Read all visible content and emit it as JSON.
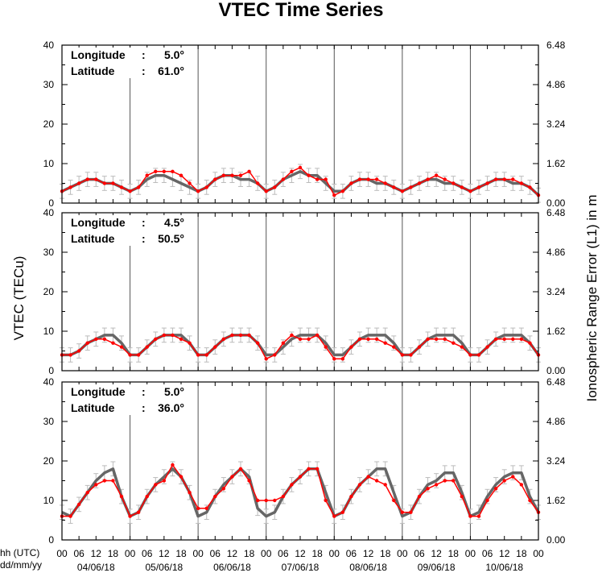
{
  "chart_data": {
    "type": "line",
    "title": "VTEC Time Series",
    "ylabel_left": "VTEC (TECu)",
    "ylabel_right": "Ionospheric Range Error (L1) in m",
    "xlabel_lines": [
      "hh (UTC)",
      "dd/mm/yy"
    ],
    "ylim": [
      0,
      40
    ],
    "y_ticks": [
      "0",
      "10",
      "20",
      "30",
      "40"
    ],
    "right_ticks": [
      "0.00",
      "1.62",
      "3.24",
      "4.86",
      "6.48"
    ],
    "hour_ticks": [
      "00",
      "06",
      "12",
      "18",
      "00",
      "06",
      "12",
      "18",
      "00",
      "06",
      "12",
      "18",
      "00",
      "06",
      "12",
      "18",
      "00",
      "06",
      "12",
      "18",
      "00",
      "06",
      "12",
      "18",
      "00",
      "06",
      "12",
      "18",
      "00"
    ],
    "day_labels": [
      "04/06/18",
      "05/06/18",
      "06/06/18",
      "07/06/18",
      "08/06/18",
      "09/06/18",
      "10/06/18"
    ],
    "series_colors": {
      "reference": "#666666",
      "measured": "#ff0000",
      "error_bar": "#bbbbbb",
      "day_line": "#555555"
    },
    "x_hours": [
      0,
      3,
      6,
      9,
      12,
      15,
      18,
      21,
      24,
      27,
      30,
      33,
      36,
      39,
      42,
      45,
      48,
      51,
      54,
      57,
      60,
      63,
      66,
      69,
      72,
      75,
      78,
      81,
      84,
      87,
      90,
      93,
      96,
      99,
      102,
      105,
      108,
      111,
      114,
      117,
      120,
      123,
      126,
      129,
      132,
      135,
      138,
      141,
      144,
      147,
      150,
      153,
      156,
      159,
      162,
      165,
      168
    ],
    "panels": [
      {
        "longitude_label": "Longitude",
        "longitude_sep": ":",
        "longitude_value": "5.0°",
        "latitude_label": "Latitude",
        "latitude_sep": ":",
        "latitude_value": "61.0°",
        "series": [
          {
            "values": [
              3,
              4,
              5,
              6,
              6,
              5,
              5,
              4,
              3,
              4,
              6,
              7,
              7,
              6,
              5,
              4,
              3,
              4,
              6,
              7,
              7,
              6,
              6,
              5,
              3,
              4,
              6,
              7,
              8,
              7,
              7,
              5,
              3,
              3,
              5,
              6,
              6,
              5,
              5,
              4,
              3,
              4,
              5,
              6,
              6,
              5,
              5,
              4,
              3,
              4,
              5,
              6,
              6,
              5,
              5,
              4,
              2
            ]
          },
          {
            "values": [
              3,
              4,
              5,
              6,
              6,
              5,
              5,
              4,
              3,
              4,
              7,
              8,
              8,
              8,
              7,
              5,
              3,
              4,
              6,
              7,
              7,
              7,
              8,
              5,
              3,
              4,
              6,
              8,
              9,
              7,
              6,
              6,
              2,
              3,
              5,
              6,
              6,
              6,
              5,
              4,
              3,
              4,
              5,
              6,
              7,
              6,
              5,
              4,
              3,
              4,
              5,
              6,
              6,
              6,
              5,
              4,
              2
            ]
          }
        ]
      },
      {
        "longitude_label": "Longitude",
        "longitude_sep": ":",
        "longitude_value": "4.5°",
        "latitude_label": "Latitude",
        "latitude_sep": ":",
        "latitude_value": "50.5°",
        "series": [
          {
            "values": [
              4,
              4,
              5,
              7,
              8,
              9,
              9,
              7,
              4,
              4,
              6,
              8,
              9,
              9,
              9,
              7,
              4,
              4,
              6,
              8,
              9,
              9,
              9,
              7,
              4,
              4,
              6,
              8,
              9,
              9,
              9,
              7,
              4,
              4,
              6,
              8,
              9,
              9,
              9,
              7,
              4,
              4,
              6,
              8,
              9,
              9,
              9,
              7,
              4,
              4,
              6,
              8,
              9,
              9,
              9,
              7,
              4
            ]
          },
          {
            "values": [
              4,
              4,
              5,
              7,
              8,
              8,
              7,
              6,
              4,
              4,
              6,
              8,
              9,
              9,
              8,
              7,
              4,
              4,
              6,
              8,
              9,
              9,
              9,
              7,
              3,
              4,
              7,
              9,
              8,
              8,
              9,
              6,
              3,
              3,
              6,
              8,
              8,
              8,
              7,
              6,
              4,
              4,
              6,
              8,
              8,
              8,
              7,
              6,
              4,
              4,
              6,
              8,
              8,
              8,
              8,
              7,
              4
            ]
          }
        ]
      },
      {
        "longitude_label": "Longitude",
        "longitude_sep": ":",
        "longitude_value": "5.0°",
        "latitude_label": "Latitude",
        "latitude_sep": ":",
        "latitude_value": "36.0°",
        "series": [
          {
            "values": [
              7,
              6,
              9,
              12,
              15,
              17,
              18,
              11,
              6,
              7,
              11,
              14,
              16,
              18,
              16,
              12,
              6,
              7,
              11,
              14,
              16,
              18,
              16,
              8,
              6,
              7,
              11,
              14,
              16,
              18,
              18,
              12,
              6,
              7,
              11,
              14,
              16,
              18,
              18,
              12,
              6,
              7,
              11,
              14,
              15,
              17,
              17,
              12,
              6,
              7,
              11,
              14,
              16,
              17,
              17,
              11,
              7
            ]
          },
          {
            "values": [
              6,
              6,
              9,
              12,
              14,
              15,
              15,
              11,
              6,
              7,
              11,
              14,
              15,
              19,
              16,
              12,
              8,
              8,
              11,
              13,
              16,
              18,
              15,
              10,
              10,
              10,
              11,
              14,
              16,
              18,
              18,
              10,
              6,
              7,
              11,
              14,
              16,
              15,
              14,
              10,
              7,
              7,
              11,
              13,
              14,
              15,
              15,
              11,
              6,
              6,
              10,
              13,
              15,
              16,
              14,
              10,
              7
            ]
          }
        ]
      }
    ]
  }
}
